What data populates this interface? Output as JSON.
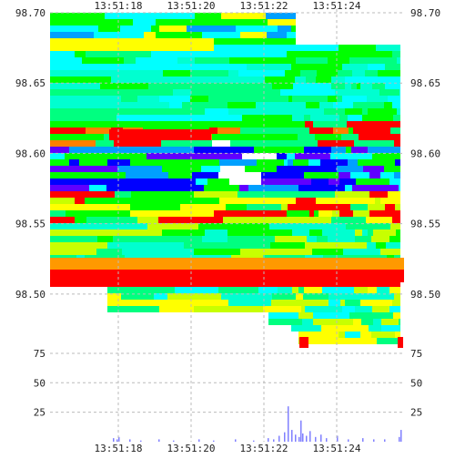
{
  "chart_data": [
    {
      "type": "heatmap",
      "title": "",
      "xlabel": "",
      "ylabel": "",
      "x_ticks": [
        "13:51:18",
        "13:51:20",
        "13:51:22",
        "13:51:24"
      ],
      "y_ticks": [
        "98.70",
        "98.65",
        "98.60",
        "98.55",
        "98.50"
      ],
      "ylim": [
        98.463,
        98.7
      ],
      "grid": true,
      "axis_labels_both_sides": true,
      "color_scale": [
        "#ff0000",
        "#ff8000",
        "#ffd000",
        "#ffff00",
        "#c8ff00",
        "#00ff00",
        "#00ff80",
        "#00ffd0",
        "#00ffff",
        "#00a0ff",
        "#0000ff",
        "#6000ff",
        "#a000ff"
      ]
    },
    {
      "type": "bar",
      "title": "",
      "xlabel": "",
      "ylabel": "",
      "x_ticks": [
        "13:51:18",
        "13:51:20",
        "13:51:22",
        "13:51:24"
      ],
      "y_ticks": [
        "75",
        "50",
        "25"
      ],
      "ylim": [
        0,
        85
      ],
      "bar_color": "#8080ff",
      "axis_labels_both_sides": true,
      "values": [
        {
          "t": "13:51:17.85",
          "v": 3
        },
        {
          "t": "13:51:17.95",
          "v": 2
        },
        {
          "t": "13:51:18.00",
          "v": 4
        },
        {
          "t": "13:51:18.30",
          "v": 2
        },
        {
          "t": "13:51:18.60",
          "v": 1
        },
        {
          "t": "13:51:19.10",
          "v": 2
        },
        {
          "t": "13:51:19.50",
          "v": 1
        },
        {
          "t": "13:51:20.20",
          "v": 2
        },
        {
          "t": "13:51:20.60",
          "v": 1
        },
        {
          "t": "13:51:21.20",
          "v": 2
        },
        {
          "t": "13:51:21.70",
          "v": 1
        },
        {
          "t": "13:51:22.10",
          "v": 3
        },
        {
          "t": "13:51:22.25",
          "v": 2
        },
        {
          "t": "13:51:22.40",
          "v": 5
        },
        {
          "t": "13:51:22.55",
          "v": 8
        },
        {
          "t": "13:51:22.65",
          "v": 30
        },
        {
          "t": "13:51:22.75",
          "v": 10
        },
        {
          "t": "13:51:22.85",
          "v": 6
        },
        {
          "t": "13:51:22.95",
          "v": 4
        },
        {
          "t": "13:51:23.00",
          "v": 18
        },
        {
          "t": "13:51:23.05",
          "v": 7
        },
        {
          "t": "13:51:23.15",
          "v": 5
        },
        {
          "t": "13:51:23.25",
          "v": 9
        },
        {
          "t": "13:51:23.40",
          "v": 4
        },
        {
          "t": "13:51:23.55",
          "v": 6
        },
        {
          "t": "13:51:23.70",
          "v": 3
        },
        {
          "t": "13:51:24.00",
          "v": 5
        },
        {
          "t": "13:51:24.30",
          "v": 2
        },
        {
          "t": "13:51:24.70",
          "v": 3
        },
        {
          "t": "13:51:25.00",
          "v": 2
        },
        {
          "t": "13:51:25.30",
          "v": 2
        },
        {
          "t": "13:51:25.70",
          "v": 4
        },
        {
          "t": "13:51:25.75",
          "v": 10
        }
      ]
    }
  ]
}
